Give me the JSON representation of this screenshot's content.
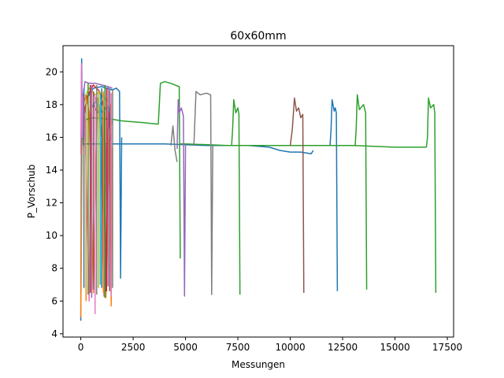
{
  "chart_data": {
    "type": "line",
    "title": "60x60mm",
    "xlabel": "Messungen",
    "ylabel": "P_Vorschub",
    "xlim": [
      -850,
      17800
    ],
    "ylim": [
      3.8,
      21.6
    ],
    "xticks": [
      0,
      2500,
      5000,
      7500,
      10000,
      12500,
      15000,
      17500
    ],
    "yticks": [
      4,
      6,
      8,
      10,
      12,
      14,
      16,
      18,
      20
    ],
    "grid": false,
    "legend": "none",
    "series": [
      {
        "color": "#1f77b4",
        "x": [
          0,
          40,
          80,
          150,
          300,
          600,
          1000,
          1500,
          1700,
          1850,
          1900,
          1950
        ],
        "y": [
          4.8,
          20.8,
          15.5,
          17.2,
          18.4,
          19.0,
          19.1,
          18.9,
          19.0,
          18.8,
          7.4,
          16.0
        ]
      },
      {
        "color": "#1f77b4",
        "x": [
          100,
          2000,
          4000,
          6000,
          8000,
          9000,
          9500,
          10000,
          10500,
          11000,
          11100
        ],
        "y": [
          15.6,
          15.6,
          15.6,
          15.5,
          15.5,
          15.4,
          15.2,
          15.1,
          15.1,
          15.0,
          15.2
        ]
      },
      {
        "color": "#1f77b4",
        "x": [
          11900,
          11950,
          12000,
          12100,
          12150,
          12200,
          12250
        ],
        "y": [
          15.5,
          16.5,
          18.3,
          17.6,
          17.8,
          17.5,
          6.6
        ]
      },
      {
        "color": "#ff7f0e",
        "x": [
          0,
          60,
          120,
          250,
          400,
          600,
          800,
          1000,
          1200,
          1400,
          1450,
          1500
        ],
        "y": [
          5.0,
          15.0,
          18.0,
          18.6,
          17.5,
          6.5,
          18.4,
          16.0,
          6.2,
          18.0,
          5.7,
          15.4
        ]
      },
      {
        "color": "#2ca02c",
        "x": [
          0,
          100,
          500,
          1500,
          2000,
          3000,
          3700
        ],
        "y": [
          15.0,
          17.0,
          17.2,
          17.1,
          17.0,
          16.9,
          16.8
        ]
      },
      {
        "color": "#2ca02c",
        "x": [
          3700,
          3800,
          4000,
          4300,
          4500,
          4700,
          4750
        ],
        "y": [
          16.8,
          19.3,
          19.4,
          19.3,
          19.2,
          19.1,
          8.6
        ]
      },
      {
        "color": "#2ca02c",
        "x": [
          4750,
          5000,
          7000,
          9000,
          11000,
          13000,
          15000,
          16300,
          16500
        ],
        "y": [
          15.6,
          15.6,
          15.5,
          15.5,
          15.5,
          15.5,
          15.4,
          15.4,
          15.4
        ]
      },
      {
        "color": "#2ca02c",
        "x": [
          7200,
          7250,
          7300,
          7400,
          7500,
          7550,
          7600
        ],
        "y": [
          15.5,
          16.5,
          18.3,
          17.5,
          17.8,
          17.4,
          6.4
        ]
      },
      {
        "color": "#2ca02c",
        "x": [
          13100,
          13150,
          13200,
          13300,
          13500,
          13600,
          13650
        ],
        "y": [
          15.5,
          16.5,
          18.6,
          17.7,
          18.0,
          17.5,
          6.7
        ]
      },
      {
        "color": "#2ca02c",
        "x": [
          16500,
          16550,
          16600,
          16700,
          16850,
          16900,
          16950
        ],
        "y": [
          15.4,
          16.0,
          18.4,
          17.8,
          18.0,
          17.5,
          6.5
        ]
      },
      {
        "color": "#d62728",
        "x": [
          100,
          300,
          600,
          900,
          1100,
          1200,
          1300,
          1400
        ],
        "y": [
          17.0,
          18.5,
          19.2,
          18.8,
          17.8,
          6.6,
          18.0,
          15.8
        ]
      },
      {
        "color": "#9467bd",
        "x": [
          0,
          60,
          200,
          400,
          700,
          1000,
          1300,
          1500
        ],
        "y": [
          15.5,
          18.0,
          19.4,
          19.3,
          19.3,
          19.2,
          19.1,
          19.0
        ]
      },
      {
        "color": "#9467bd",
        "x": [
          4600,
          4650,
          4700,
          4800,
          4900,
          4950,
          5000
        ],
        "y": [
          15.3,
          18.3,
          17.5,
          17.8,
          17.3,
          6.3,
          15.6
        ]
      },
      {
        "color": "#8c564b",
        "x": [
          600,
          800,
          1000,
          1100,
          1150
        ],
        "y": [
          18.0,
          17.5,
          18.2,
          7.0,
          16.0
        ]
      },
      {
        "color": "#8c564b",
        "x": [
          10000,
          10100,
          10200,
          10300,
          10400,
          10500,
          10600,
          10650
        ],
        "y": [
          15.5,
          16.5,
          18.4,
          17.6,
          17.8,
          17.2,
          17.4,
          6.5
        ]
      },
      {
        "color": "#e377c2",
        "x": [
          0,
          30,
          70,
          120,
          200,
          400,
          500
        ],
        "y": [
          15.0,
          20.5,
          16.0,
          18.5,
          17.0,
          6.0,
          17.5
        ]
      },
      {
        "color": "#e377c2",
        "x": [
          600,
          700,
          900,
          1100,
          1200
        ],
        "y": [
          18.8,
          18.4,
          17.9,
          6.3,
          15.5
        ]
      },
      {
        "color": "#7f7f7f",
        "x": [
          4300,
          4400,
          4500,
          4600
        ],
        "y": [
          15.5,
          16.7,
          15.2,
          14.5
        ]
      },
      {
        "color": "#7f7f7f",
        "x": [
          5400,
          5500,
          5700,
          6000,
          6200,
          6250,
          6300
        ],
        "y": [
          15.5,
          18.8,
          18.6,
          18.7,
          18.6,
          6.4,
          15.5
        ]
      },
      {
        "color": "#bcbd22",
        "x": [
          200,
          400,
          700,
          900,
          1100,
          1300
        ],
        "y": [
          18.5,
          19.0,
          18.6,
          18.8,
          18.4,
          18.2
        ]
      },
      {
        "color": "#17becf",
        "x": [
          500,
          700,
          1000,
          1300,
          1500
        ],
        "y": [
          17.8,
          18.2,
          17.5,
          17.9,
          16.8
        ]
      }
    ],
    "spikes": [
      {
        "color": "#1f77b4",
        "x": 150,
        "y_from": 6.8,
        "y_to": 19.0
      },
      {
        "color": "#ff7f0e",
        "x": 250,
        "y_from": 6.0,
        "y_to": 18.6
      },
      {
        "color": "#2ca02c",
        "x": 350,
        "y_from": 6.4,
        "y_to": 19.3
      },
      {
        "color": "#d62728",
        "x": 450,
        "y_from": 6.5,
        "y_to": 19.2
      },
      {
        "color": "#9467bd",
        "x": 520,
        "y_from": 6.2,
        "y_to": 19.2
      },
      {
        "color": "#8c564b",
        "x": 600,
        "y_from": 6.7,
        "y_to": 18.8
      },
      {
        "color": "#e377c2",
        "x": 680,
        "y_from": 5.2,
        "y_to": 18.5
      },
      {
        "color": "#7f7f7f",
        "x": 760,
        "y_from": 6.4,
        "y_to": 19.2
      },
      {
        "color": "#bcbd22",
        "x": 850,
        "y_from": 6.8,
        "y_to": 18.8
      },
      {
        "color": "#17becf",
        "x": 930,
        "y_from": 7.0,
        "y_to": 18.6
      },
      {
        "color": "#1f77b4",
        "x": 1000,
        "y_from": 6.8,
        "y_to": 19.0
      },
      {
        "color": "#ff7f0e",
        "x": 1080,
        "y_from": 6.5,
        "y_to": 18.8
      },
      {
        "color": "#2ca02c",
        "x": 1150,
        "y_from": 6.2,
        "y_to": 19.2
      },
      {
        "color": "#d62728",
        "x": 1230,
        "y_from": 6.6,
        "y_to": 19.0
      },
      {
        "color": "#9467bd",
        "x": 1300,
        "y_from": 6.9,
        "y_to": 19.1
      },
      {
        "color": "#8c564b",
        "x": 1380,
        "y_from": 6.6,
        "y_to": 18.9
      },
      {
        "color": "#e377c2",
        "x": 1450,
        "y_from": 6.3,
        "y_to": 18.7
      },
      {
        "color": "#7f7f7f",
        "x": 1520,
        "y_from": 6.8,
        "y_to": 18.9
      }
    ]
  }
}
